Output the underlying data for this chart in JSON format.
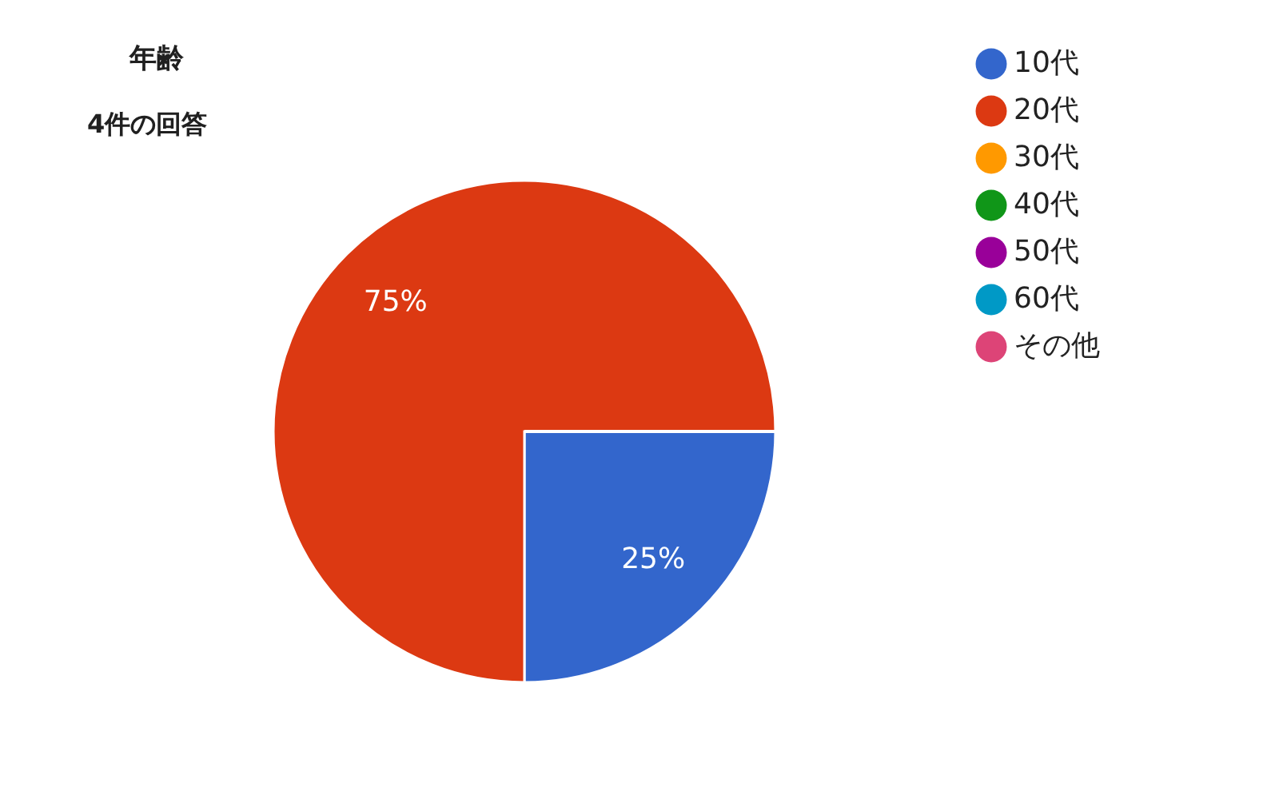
{
  "chart_data": {
    "type": "pie",
    "title": "年齢",
    "subtitle": "4件の回答",
    "categories": [
      "10代",
      "20代",
      "30代",
      "40代",
      "50代",
      "60代",
      "その他"
    ],
    "values": [
      25,
      75,
      0,
      0,
      0,
      0,
      0
    ],
    "colors": [
      "#3366cc",
      "#dc3912",
      "#ff9900",
      "#109618",
      "#990099",
      "#0099c6",
      "#dd4477"
    ],
    "value_labels": [
      "25%",
      "75%",
      null,
      null,
      null,
      null,
      null
    ],
    "legend": "top right"
  }
}
